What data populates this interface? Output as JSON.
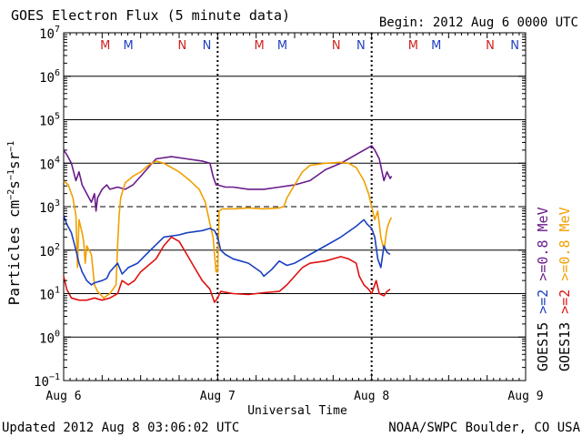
{
  "header": {
    "title": "GOES Electron Flux (5 minute data)",
    "begin": "Begin: 2012 Aug 6 0000 UTC"
  },
  "footer": {
    "updated": "Updated 2012 Aug  8 03:06:02 UTC",
    "credit": "NOAA/SWPC Boulder, CO USA"
  },
  "colors": {
    "purple": "#6a1a8a",
    "orange": "#f0a000",
    "blue": "#1a40c0",
    "red": "#e01010",
    "marker_red": "#d02020",
    "marker_blue": "#2040c0"
  },
  "chart_data": {
    "type": "line",
    "title": "GOES Electron Flux (5 minute data)",
    "xlabel": "Universal Time",
    "ylabel": "Particles cm⁻²s⁻¹sr⁻¹",
    "y_scale": "log",
    "ylim_exp": [
      -1,
      7
    ],
    "xlim_days": [
      0,
      3
    ],
    "x_ticks": [
      {
        "label": "Aug 6",
        "day": 0
      },
      {
        "label": "Aug 7",
        "day": 1
      },
      {
        "label": "Aug 8",
        "day": 2
      },
      {
        "label": "Aug 9",
        "day": 3
      }
    ],
    "y_ticks": [
      {
        "base": "10",
        "exp": "7",
        "e": 7
      },
      {
        "base": "10",
        "exp": "6",
        "e": 6
      },
      {
        "base": "10",
        "exp": "5",
        "e": 5
      },
      {
        "base": "10",
        "exp": "4",
        "e": 4
      },
      {
        "base": "10",
        "exp": "3",
        "e": 3
      },
      {
        "base": "10",
        "exp": "2",
        "e": 2
      },
      {
        "base": "10",
        "exp": "1",
        "e": 1
      },
      {
        "base": "10",
        "exp": "0",
        "e": 0
      },
      {
        "base": "10",
        "exp": "−1",
        "e": -1
      }
    ],
    "threshold_e": 3,
    "legend": {
      "col1": {
        "title": "GOES15",
        "entries": [
          {
            "label": ">=0.8 MeV",
            "color": "#6a1a8a"
          },
          {
            "label": ">=2",
            "color": "#1a40c0"
          }
        ]
      },
      "col2": {
        "title": "GOES13",
        "entries": [
          {
            "label": ">=0.8 MeV",
            "color": "#f0a000"
          },
          {
            "label": ">=2",
            "color": "#e01010"
          }
        ]
      }
    },
    "markers": [
      {
        "label": "M",
        "day": 0.27,
        "color": "#d02020"
      },
      {
        "label": "M",
        "day": 0.42,
        "color": "#2040c0"
      },
      {
        "label": "N",
        "day": 0.77,
        "color": "#d02020"
      },
      {
        "label": "N",
        "day": 0.93,
        "color": "#2040c0"
      },
      {
        "label": "M",
        "day": 1.27,
        "color": "#d02020"
      },
      {
        "label": "M",
        "day": 1.42,
        "color": "#2040c0"
      },
      {
        "label": "N",
        "day": 1.77,
        "color": "#d02020"
      },
      {
        "label": "N",
        "day": 1.93,
        "color": "#2040c0"
      },
      {
        "label": "M",
        "day": 2.27,
        "color": "#d02020"
      },
      {
        "label": "M",
        "day": 2.42,
        "color": "#2040c0"
      },
      {
        "label": "N",
        "day": 2.77,
        "color": "#d02020"
      },
      {
        "label": "N",
        "day": 2.93,
        "color": "#2040c0"
      }
    ],
    "series": [
      {
        "name": "GOES15 >=0.8 MeV",
        "color": "#6a1a8a",
        "points": [
          [
            0,
            4.3
          ],
          [
            0.02,
            4.2
          ],
          [
            0.05,
            4.0
          ],
          [
            0.08,
            3.6
          ],
          [
            0.1,
            3.8
          ],
          [
            0.12,
            3.5
          ],
          [
            0.15,
            3.3
          ],
          [
            0.18,
            3.1
          ],
          [
            0.2,
            3.3
          ],
          [
            0.21,
            2.9
          ],
          [
            0.22,
            3.2
          ],
          [
            0.25,
            3.4
          ],
          [
            0.28,
            3.5
          ],
          [
            0.3,
            3.4
          ],
          [
            0.35,
            3.45
          ],
          [
            0.4,
            3.4
          ],
          [
            0.45,
            3.5
          ],
          [
            0.5,
            3.7
          ],
          [
            0.55,
            3.9
          ],
          [
            0.6,
            4.1
          ],
          [
            0.7,
            4.15
          ],
          [
            0.8,
            4.1
          ],
          [
            0.9,
            4.05
          ],
          [
            0.95,
            4.0
          ],
          [
            0.97,
            3.7
          ],
          [
            0.99,
            3.5
          ],
          [
            1.0,
            3.5
          ],
          [
            1.05,
            3.45
          ],
          [
            1.1,
            3.45
          ],
          [
            1.2,
            3.4
          ],
          [
            1.3,
            3.4
          ],
          [
            1.4,
            3.45
          ],
          [
            1.5,
            3.5
          ],
          [
            1.6,
            3.6
          ],
          [
            1.7,
            3.85
          ],
          [
            1.8,
            4.0
          ],
          [
            1.9,
            4.2
          ],
          [
            1.95,
            4.3
          ],
          [
            2.0,
            4.4
          ],
          [
            2.02,
            4.3
          ],
          [
            2.05,
            4.1
          ],
          [
            2.08,
            3.6
          ],
          [
            2.1,
            3.8
          ],
          [
            2.12,
            3.65
          ],
          [
            2.13,
            3.7
          ]
        ]
      },
      {
        "name": "GOES13 >=0.8 MeV",
        "color": "#f0a000",
        "points": [
          [
            0,
            3.6
          ],
          [
            0.03,
            3.5
          ],
          [
            0.06,
            3.2
          ],
          [
            0.08,
            2.8
          ],
          [
            0.09,
            1.6
          ],
          [
            0.1,
            2.7
          ],
          [
            0.12,
            2.4
          ],
          [
            0.13,
            2.2
          ],
          [
            0.14,
            1.7
          ],
          [
            0.15,
            2.1
          ],
          [
            0.18,
            1.9
          ],
          [
            0.2,
            1.2
          ],
          [
            0.22,
            1.05
          ],
          [
            0.26,
            0.9
          ],
          [
            0.3,
            1.0
          ],
          [
            0.34,
            1.2
          ],
          [
            0.35,
            2.1
          ],
          [
            0.36,
            2.8
          ],
          [
            0.37,
            3.2
          ],
          [
            0.4,
            3.55
          ],
          [
            0.45,
            3.7
          ],
          [
            0.5,
            3.8
          ],
          [
            0.55,
            3.95
          ],
          [
            0.6,
            4.05
          ],
          [
            0.65,
            4.0
          ],
          [
            0.7,
            3.9
          ],
          [
            0.75,
            3.8
          ],
          [
            0.82,
            3.6
          ],
          [
            0.88,
            3.4
          ],
          [
            0.92,
            3.1
          ],
          [
            0.95,
            2.6
          ],
          [
            0.97,
            2.3
          ],
          [
            0.99,
            1.5
          ],
          [
            1.0,
            1.5
          ],
          [
            1.01,
            2.9
          ],
          [
            1.03,
            2.95
          ],
          [
            1.1,
            2.95
          ],
          [
            1.2,
            2.97
          ],
          [
            1.3,
            2.95
          ],
          [
            1.4,
            2.97
          ],
          [
            1.43,
            3.0
          ],
          [
            1.45,
            3.2
          ],
          [
            1.5,
            3.5
          ],
          [
            1.55,
            3.8
          ],
          [
            1.6,
            3.95
          ],
          [
            1.7,
            4.0
          ],
          [
            1.8,
            4.02
          ],
          [
            1.85,
            4.0
          ],
          [
            1.9,
            3.9
          ],
          [
            1.95,
            3.6
          ],
          [
            1.98,
            3.3
          ],
          [
            2.0,
            3.0
          ],
          [
            2.02,
            2.7
          ],
          [
            2.04,
            2.9
          ],
          [
            2.06,
            2.3
          ],
          [
            2.08,
            2.0
          ],
          [
            2.1,
            2.5
          ],
          [
            2.12,
            2.7
          ],
          [
            2.13,
            2.75
          ]
        ]
      },
      {
        "name": "GOES15 >=2 MeV",
        "color": "#1a40c0",
        "points": [
          [
            0,
            2.8
          ],
          [
            0.02,
            2.6
          ],
          [
            0.05,
            2.4
          ],
          [
            0.08,
            2.0
          ],
          [
            0.1,
            1.7
          ],
          [
            0.12,
            1.5
          ],
          [
            0.15,
            1.3
          ],
          [
            0.18,
            1.2
          ],
          [
            0.2,
            1.25
          ],
          [
            0.25,
            1.3
          ],
          [
            0.28,
            1.35
          ],
          [
            0.3,
            1.5
          ],
          [
            0.35,
            1.7
          ],
          [
            0.38,
            1.45
          ],
          [
            0.42,
            1.6
          ],
          [
            0.48,
            1.7
          ],
          [
            0.55,
            1.95
          ],
          [
            0.65,
            2.3
          ],
          [
            0.75,
            2.35
          ],
          [
            0.8,
            2.4
          ],
          [
            0.9,
            2.45
          ],
          [
            0.95,
            2.5
          ],
          [
            0.98,
            2.45
          ],
          [
            1.0,
            2.3
          ],
          [
            1.02,
            2.0
          ],
          [
            1.05,
            1.9
          ],
          [
            1.1,
            1.8
          ],
          [
            1.15,
            1.75
          ],
          [
            1.2,
            1.7
          ],
          [
            1.28,
            1.5
          ],
          [
            1.3,
            1.4
          ],
          [
            1.35,
            1.55
          ],
          [
            1.4,
            1.75
          ],
          [
            1.45,
            1.65
          ],
          [
            1.5,
            1.7
          ],
          [
            1.55,
            1.8
          ],
          [
            1.6,
            1.9
          ],
          [
            1.7,
            2.1
          ],
          [
            1.8,
            2.3
          ],
          [
            1.9,
            2.55
          ],
          [
            1.95,
            2.7
          ],
          [
            1.97,
            2.6
          ],
          [
            2.0,
            2.5
          ],
          [
            2.02,
            2.3
          ],
          [
            2.04,
            1.8
          ],
          [
            2.06,
            1.6
          ],
          [
            2.08,
            2.1
          ],
          [
            2.1,
            1.95
          ],
          [
            2.12,
            1.9
          ]
        ]
      },
      {
        "name": "GOES13 >=2 MeV",
        "color": "#e01010",
        "points": [
          [
            0,
            1.4
          ],
          [
            0.02,
            1.1
          ],
          [
            0.05,
            0.9
          ],
          [
            0.1,
            0.85
          ],
          [
            0.15,
            0.85
          ],
          [
            0.2,
            0.9
          ],
          [
            0.25,
            0.85
          ],
          [
            0.3,
            0.9
          ],
          [
            0.35,
            1.0
          ],
          [
            0.38,
            1.3
          ],
          [
            0.42,
            1.2
          ],
          [
            0.46,
            1.3
          ],
          [
            0.5,
            1.5
          ],
          [
            0.55,
            1.65
          ],
          [
            0.6,
            1.8
          ],
          [
            0.65,
            2.1
          ],
          [
            0.7,
            2.3
          ],
          [
            0.75,
            2.2
          ],
          [
            0.8,
            1.9
          ],
          [
            0.85,
            1.6
          ],
          [
            0.9,
            1.3
          ],
          [
            0.95,
            1.1
          ],
          [
            0.98,
            0.8
          ],
          [
            1.0,
            0.9
          ],
          [
            1.02,
            1.05
          ],
          [
            1.1,
            1.0
          ],
          [
            1.2,
            0.98
          ],
          [
            1.3,
            1.02
          ],
          [
            1.4,
            1.05
          ],
          [
            1.45,
            1.2
          ],
          [
            1.5,
            1.4
          ],
          [
            1.55,
            1.6
          ],
          [
            1.6,
            1.7
          ],
          [
            1.7,
            1.75
          ],
          [
            1.8,
            1.85
          ],
          [
            1.85,
            1.8
          ],
          [
            1.9,
            1.7
          ],
          [
            1.92,
            1.4
          ],
          [
            1.95,
            1.2
          ],
          [
            1.98,
            1.1
          ],
          [
            2.0,
            1.0
          ],
          [
            2.03,
            1.3
          ],
          [
            2.05,
            1.0
          ],
          [
            2.08,
            0.95
          ],
          [
            2.1,
            1.05
          ],
          [
            2.12,
            1.1
          ]
        ]
      }
    ]
  }
}
